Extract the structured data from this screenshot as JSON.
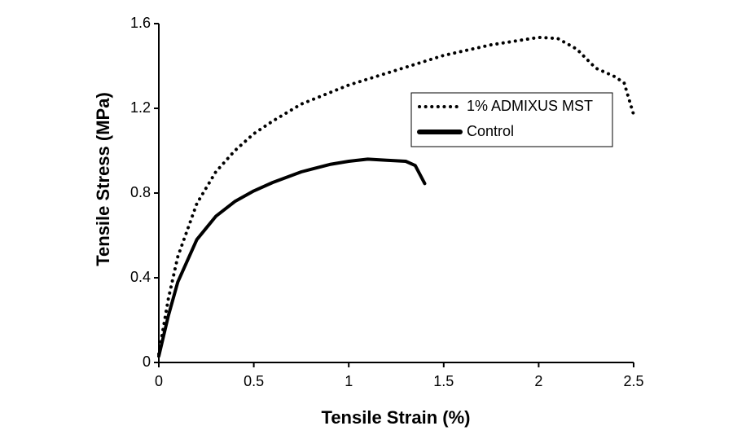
{
  "chart_data": {
    "type": "line",
    "x_label": "Tensile Strain (%)",
    "y_label": "Tensile Stress (MPa)",
    "xlim": [
      0,
      2.5
    ],
    "xticks": [
      0,
      0.5,
      1,
      1.5,
      2,
      2.5
    ],
    "ylim": [
      0,
      1.6
    ],
    "yticks": [
      0,
      0.4,
      0.8,
      1.2,
      1.6
    ],
    "grid": false,
    "series": [
      {
        "name": "1% ADMIXUS MST",
        "color": "#000000",
        "style": "dotted",
        "x": [
          0,
          0.05,
          0.1,
          0.2,
          0.3,
          0.4,
          0.5,
          0.6,
          0.75,
          1.0,
          1.25,
          1.5,
          1.75,
          2.0,
          2.1,
          2.2,
          2.3,
          2.4,
          2.45,
          2.5
        ],
        "values": [
          0.04,
          0.3,
          0.5,
          0.75,
          0.9,
          1.0,
          1.08,
          1.14,
          1.22,
          1.31,
          1.38,
          1.45,
          1.5,
          1.535,
          1.53,
          1.48,
          1.39,
          1.35,
          1.32,
          1.17
        ]
      },
      {
        "name": "Control",
        "color": "#000000",
        "style": "solid",
        "x": [
          0,
          0.05,
          0.1,
          0.2,
          0.3,
          0.4,
          0.5,
          0.6,
          0.75,
          0.9,
          1.0,
          1.1,
          1.2,
          1.3,
          1.35,
          1.4
        ],
        "values": [
          0.03,
          0.22,
          0.38,
          0.58,
          0.69,
          0.76,
          0.81,
          0.85,
          0.9,
          0.935,
          0.95,
          0.96,
          0.955,
          0.95,
          0.93,
          0.845
        ]
      }
    ]
  }
}
